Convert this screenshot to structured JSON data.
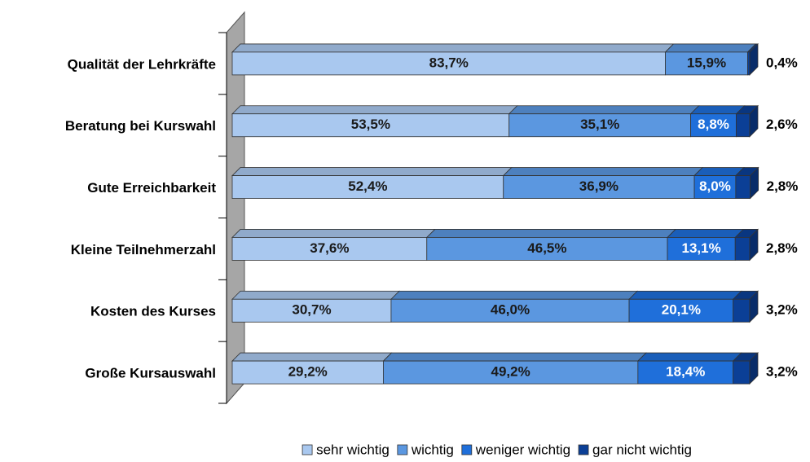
{
  "chart_data": {
    "type": "stacked-bar-horizontal",
    "categories": [
      "Qualität der Lehrkräfte",
      "Beratung bei Kurswahl",
      "Gute Erreichbarkeit",
      "Kleine Teilnehmerzahl",
      "Kosten des Kurses",
      "Große Kursauswahl"
    ],
    "xlim": [
      0,
      100
    ],
    "series": [
      {
        "name": "sehr wichtig",
        "color": "#a9c8ef",
        "label_color": "#1a1a1a",
        "values": [
          83.7,
          53.5,
          52.4,
          37.6,
          30.7,
          29.2
        ],
        "value_labels": [
          "83,7%",
          "53,5%",
          "52,4%",
          "37,6%",
          "30,7%",
          "29,2%"
        ]
      },
      {
        "name": "wichtig",
        "color": "#5b97e0",
        "label_color": "#1a1a1a",
        "values": [
          15.9,
          35.1,
          36.9,
          46.5,
          46.0,
          49.2
        ],
        "value_labels": [
          "15,9%",
          "35,1%",
          "36,9%",
          "46,5%",
          "46,0%",
          "49,2%"
        ]
      },
      {
        "name": "weniger wichtig",
        "color": "#1f6fda",
        "label_color": "#ffffff",
        "values": [
          null,
          8.8,
          8.0,
          13.1,
          20.1,
          18.4
        ],
        "value_labels": [
          null,
          "8,8%",
          "8,0%",
          "13,1%",
          "20,1%",
          "18,4%"
        ]
      },
      {
        "name": "gar nicht wichtig",
        "color": "#0b3f96",
        "label_color": "#000000",
        "label_outside": true,
        "values": [
          0.4,
          2.6,
          2.8,
          2.8,
          3.2,
          3.2
        ],
        "value_labels": [
          "0,4%",
          "2,6%",
          "2,8%",
          "2,8%",
          "3,2%",
          "3,2%"
        ]
      }
    ],
    "legend": "bottom"
  }
}
